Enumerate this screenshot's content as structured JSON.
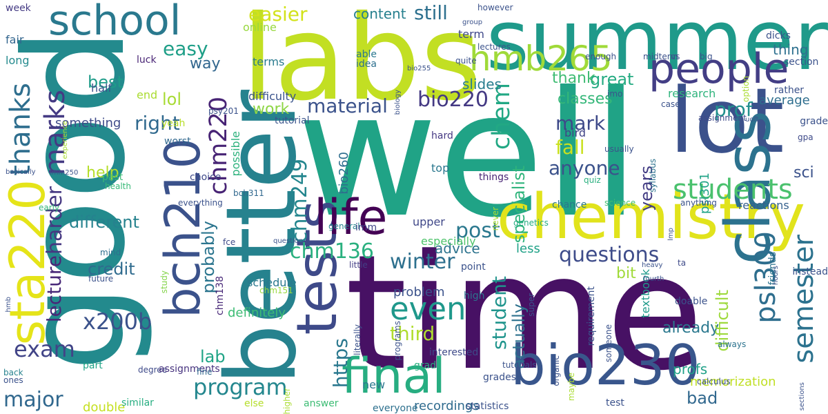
{
  "cloud": {
    "words": [
      {
        "text": "well",
        "color": "#20a386"
      },
      {
        "text": "time",
        "color": "#471164"
      },
      {
        "text": "good",
        "color": "#238a8d"
      },
      {
        "text": "labs",
        "color": "#c2df23"
      },
      {
        "text": "summer",
        "color": "#1f9a8a"
      },
      {
        "text": "better",
        "color": "#26828e"
      },
      {
        "text": "lot",
        "color": "#3b518b"
      },
      {
        "text": "chemistry",
        "color": "#e1e31c"
      },
      {
        "text": "class",
        "color": "#2c728e"
      },
      {
        "text": "tests",
        "color": "#3e4a89"
      },
      {
        "text": "people",
        "color": "#433e85"
      },
      {
        "text": "school",
        "color": "#2a798e"
      },
      {
        "text": "final",
        "color": "#27ad81"
      },
      {
        "text": "bio230",
        "color": "#39568c"
      },
      {
        "text": "sta220",
        "color": "#e5e419"
      },
      {
        "text": "bch210",
        "color": "#3b528b"
      },
      {
        "text": "life",
        "color": "#440154"
      },
      {
        "text": "hmb265",
        "color": "#a0da39"
      },
      {
        "text": "thanks",
        "color": "#2e6e8e"
      },
      {
        "text": "marks",
        "color": "#443a83"
      },
      {
        "text": "students",
        "color": "#4ac16d"
      },
      {
        "text": "semester",
        "color": "#2c728e"
      },
      {
        "text": "psl300",
        "color": "#2e6e8e"
      },
      {
        "text": "even",
        "color": "#1f988b"
      },
      {
        "text": "chm220",
        "color": "#482475"
      },
      {
        "text": "chem",
        "color": "#22a884"
      },
      {
        "text": "program",
        "color": "#24878e"
      },
      {
        "text": "exam",
        "color": "#414487"
      },
      {
        "text": "x200b",
        "color": "#3b528b"
      },
      {
        "text": "winter",
        "color": "#2d708e"
      },
      {
        "text": "questions",
        "color": "#3e4c8a"
      },
      {
        "text": "harder",
        "color": "#453781"
      },
      {
        "text": "lecture",
        "color": "#482878"
      },
      {
        "text": "major",
        "color": "#31688e"
      },
      {
        "text": "chm136",
        "color": "#2ab07f"
      },
      {
        "text": "chm249",
        "color": "#24868e"
      },
      {
        "text": "bio220",
        "color": "#443983"
      },
      {
        "text": "post",
        "color": "#2a788e"
      },
      {
        "text": "anyone",
        "color": "#3b528b"
      },
      {
        "text": "prof",
        "color": "#21908d"
      },
      {
        "text": "mark",
        "color": "#3e4989"
      },
      {
        "text": "fall",
        "color": "#cae11f"
      },
      {
        "text": "material",
        "color": "#3b528b"
      },
      {
        "text": "right",
        "color": "#30698e"
      },
      {
        "text": "easy",
        "color": "#1f9f88"
      },
      {
        "text": "easier",
        "color": "#d2e21b"
      },
      {
        "text": "still",
        "color": "#2d708e"
      },
      {
        "text": "https",
        "color": "#2a788e"
      },
      {
        "text": "third",
        "color": "#b0dd2f"
      },
      {
        "text": "student",
        "color": "#1f948c"
      },
      {
        "text": "actually",
        "color": "#2d718e"
      },
      {
        "text": "specialist",
        "color": "#2fb47c"
      },
      {
        "text": "years",
        "color": "#433d84"
      },
      {
        "text": "different",
        "color": "#26828e"
      },
      {
        "text": "probably",
        "color": "#2b758e"
      },
      {
        "text": "lab",
        "color": "#20a486"
      },
      {
        "text": "credit",
        "color": "#2f6b8e"
      },
      {
        "text": "best",
        "color": "#1e9c89"
      },
      {
        "text": "lol",
        "color": "#a8db34"
      },
      {
        "text": "great",
        "color": "#25ab82"
      },
      {
        "text": "classes",
        "color": "#35b779"
      },
      {
        "text": "thank",
        "color": "#3fbc73"
      },
      {
        "text": "work",
        "color": "#8ed645"
      },
      {
        "text": "something",
        "color": "#3e4a89"
      },
      {
        "text": "way",
        "color": "#31668e"
      },
      {
        "text": "help",
        "color": "#b5de2b"
      },
      {
        "text": "content",
        "color": "#27808e"
      },
      {
        "text": "slides",
        "color": "#287d8e"
      },
      {
        "text": "advice",
        "color": "#2c738e"
      },
      {
        "text": "already",
        "color": "#2a788e"
      },
      {
        "text": "bit",
        "color": "#a0da39"
      },
      {
        "text": "bad",
        "color": "#31688e"
      },
      {
        "text": "profs",
        "color": "#1fa088"
      },
      {
        "text": "psl301",
        "color": "#20a386"
      },
      {
        "text": "sci",
        "color": "#3b528b"
      },
      {
        "text": "thing",
        "color": "#2d708e"
      },
      {
        "text": "average",
        "color": "#2e6e8e"
      },
      {
        "text": "difficult",
        "color": "#9dd93b"
      },
      {
        "text": "reactions",
        "color": "#34608d"
      },
      {
        "text": "recordings",
        "color": "#2f6b8e"
      },
      {
        "text": "memorization",
        "color": "#c0df25"
      },
      {
        "text": "schedule",
        "color": "#2a788e"
      },
      {
        "text": "problem",
        "color": "#3b528b"
      },
      {
        "text": "definitely",
        "color": "#3dbc74"
      },
      {
        "text": "less",
        "color": "#1fa187"
      },
      {
        "text": "bio260",
        "color": "#2e6e8e"
      },
      {
        "text": "possible",
        "color": "#2db27d"
      },
      {
        "text": "especially",
        "color": "#4ec36b"
      },
      {
        "text": "upper",
        "color": "#3f4788"
      },
      {
        "text": "bird",
        "color": "#414487"
      },
      {
        "text": "research",
        "color": "#2eb37c"
      },
      {
        "text": "textbook",
        "color": "#1f9a8a"
      },
      {
        "text": "difficulty",
        "color": "#3a538b"
      },
      {
        "text": "terms",
        "color": "#297a8e"
      },
      {
        "text": "term",
        "color": "#3f4889"
      },
      {
        "text": "online",
        "color": "#98d83e"
      },
      {
        "text": "fair",
        "color": "#32658e"
      },
      {
        "text": "long",
        "color": "#238a8d"
      },
      {
        "text": "week",
        "color": "#443a83"
      },
      {
        "text": "half",
        "color": "#3b528b"
      },
      {
        "text": "luck",
        "color": "#482475"
      },
      {
        "text": "able",
        "color": "#2a788e"
      },
      {
        "text": "idea",
        "color": "#2d708e"
      },
      {
        "text": "end",
        "color": "#aadc32"
      },
      {
        "text": "yeah",
        "color": "#b8de29"
      },
      {
        "text": "psy201",
        "color": "#3b528b"
      },
      {
        "text": "tutorial",
        "color": "#3a548c"
      },
      {
        "text": "worst",
        "color": "#31688e"
      },
      {
        "text": "hard",
        "color": "#453882"
      },
      {
        "text": "top",
        "color": "#2a778e"
      },
      {
        "text": "things",
        "color": "#482475"
      },
      {
        "text": "choice",
        "color": "#3e4989"
      },
      {
        "text": "past",
        "color": "#3aba76"
      },
      {
        "text": "health",
        "color": "#37b878"
      },
      {
        "text": "early",
        "color": "#35b779"
      },
      {
        "text": "future",
        "color": "#3b528b"
      },
      {
        "text": "mind",
        "color": "#2e6f8e"
      },
      {
        "text": "study",
        "color": "#84d44b"
      },
      {
        "text": "degree",
        "color": "#3e4a89"
      },
      {
        "text": "part",
        "color": "#20a386"
      },
      {
        "text": "back",
        "color": "#26828e"
      },
      {
        "text": "ones",
        "color": "#3b528b"
      },
      {
        "text": "assignments",
        "color": "#46327e"
      },
      {
        "text": "fine",
        "color": "#31688e"
      },
      {
        "text": "double",
        "color": "#c5e021"
      },
      {
        "text": "similar",
        "color": "#27ad81"
      },
      {
        "text": "else",
        "color": "#b5de2b"
      },
      {
        "text": "answer",
        "color": "#3dbc74"
      },
      {
        "text": "everyone",
        "color": "#2d708e"
      },
      {
        "text": "statistics",
        "color": "#3b528b"
      },
      {
        "text": "new",
        "color": "#2a778e"
      },
      {
        "text": "grad",
        "color": "#29af7f"
      },
      {
        "text": "interested",
        "color": "#3e4a89"
      },
      {
        "text": "high",
        "color": "#2c738e"
      },
      {
        "text": "point",
        "color": "#3b528b"
      },
      {
        "text": "little",
        "color": "#433e85"
      },
      {
        "text": "general",
        "color": "#26828e"
      },
      {
        "text": "imm",
        "color": "#404688"
      },
      {
        "text": "fce",
        "color": "#3e4a89"
      },
      {
        "text": "question",
        "color": "#3b528b"
      },
      {
        "text": "chm138",
        "color": "#482878"
      },
      {
        "text": "chm151",
        "color": "#98d83e"
      },
      {
        "text": "bch311",
        "color": "#31688e"
      },
      {
        "text": "everything",
        "color": "#3b528b"
      },
      {
        "text": "chance",
        "color": "#2a788e"
      },
      {
        "text": "science",
        "color": "#42be71"
      },
      {
        "text": "anything",
        "color": "#3b528b"
      },
      {
        "text": "genetics",
        "color": "#25ac82"
      },
      {
        "text": "usually",
        "color": "#3b528b"
      },
      {
        "text": "quiz",
        "color": "#2ab07f"
      },
      {
        "text": "syllabus",
        "color": "#2c728e"
      },
      {
        "text": "gpa",
        "color": "#3e4a89"
      },
      {
        "text": "grade",
        "color": "#3b528b"
      },
      {
        "text": "uoft",
        "color": "#3b528b"
      },
      {
        "text": "assignment",
        "color": "#3e4a89"
      },
      {
        "text": "case",
        "color": "#3b528b"
      },
      {
        "text": "rather",
        "color": "#3b528b"
      },
      {
        "text": "friends",
        "color": "#2c738e"
      },
      {
        "text": "instead",
        "color": "#3b528b"
      },
      {
        "text": "ta",
        "color": "#3e4a89"
      },
      {
        "text": "heavy",
        "color": "#3b528b"
      },
      {
        "text": "doable",
        "color": "#3b528b"
      },
      {
        "text": "fourth",
        "color": "#3b528b"
      },
      {
        "text": "calculus",
        "color": "#3b528b"
      },
      {
        "text": "always",
        "color": "#2c738e"
      },
      {
        "text": "test",
        "color": "#3b528b"
      },
      {
        "text": "someone",
        "color": "#3b528b"
      },
      {
        "text": "requirement",
        "color": "#3b528b"
      },
      {
        "text": "organic",
        "color": "#3b528b"
      },
      {
        "text": "maybe",
        "color": "#aadc32"
      },
      {
        "text": "grades",
        "color": "#3b528b"
      },
      {
        "text": "super",
        "color": "#3b528b"
      },
      {
        "text": "tutorials",
        "color": "#3b528b"
      },
      {
        "text": "higher",
        "color": "#aadc32"
      },
      {
        "text": "literally",
        "color": "#3b528b"
      },
      {
        "text": "programs",
        "color": "#3b528b"
      },
      {
        "text": "never",
        "color": "#aadc32"
      },
      {
        "text": "imo",
        "color": "#3b528b"
      },
      {
        "text": "enough",
        "color": "#3b528b"
      },
      {
        "text": "midterm",
        "color": "#3b528b"
      },
      {
        "text": "vs",
        "color": "#3b528b"
      },
      {
        "text": "big",
        "color": "#3b528b"
      },
      {
        "text": "section",
        "color": "#3b528b"
      },
      {
        "text": "option",
        "color": "#aadc32"
      },
      {
        "text": "dicks",
        "color": "#3b528b"
      },
      {
        "text": "however",
        "color": "#3b528b"
      },
      {
        "text": "group",
        "color": "#3b528b"
      },
      {
        "text": "lectures",
        "color": "#3b528b"
      },
      {
        "text": "quite",
        "color": "#3b528b"
      },
      {
        "text": "bio255",
        "color": "#3b528b"
      },
      {
        "text": "biology",
        "color": "#3b528b"
      },
      {
        "text": "experience",
        "color": "#aadc32"
      },
      {
        "text": "basically",
        "color": "#3b528b"
      },
      {
        "text": "imm250",
        "color": "#3b528b"
      },
      {
        "text": "hmb",
        "color": "#3b528b"
      },
      {
        "text": "lmp",
        "color": "#3b528b"
      },
      {
        "text": "hours",
        "color": "#3b528b"
      },
      {
        "text": "sections",
        "color": "#3b528b"
      },
      {
        "text": "bio130",
        "color": "#aadc32"
      }
    ]
  }
}
